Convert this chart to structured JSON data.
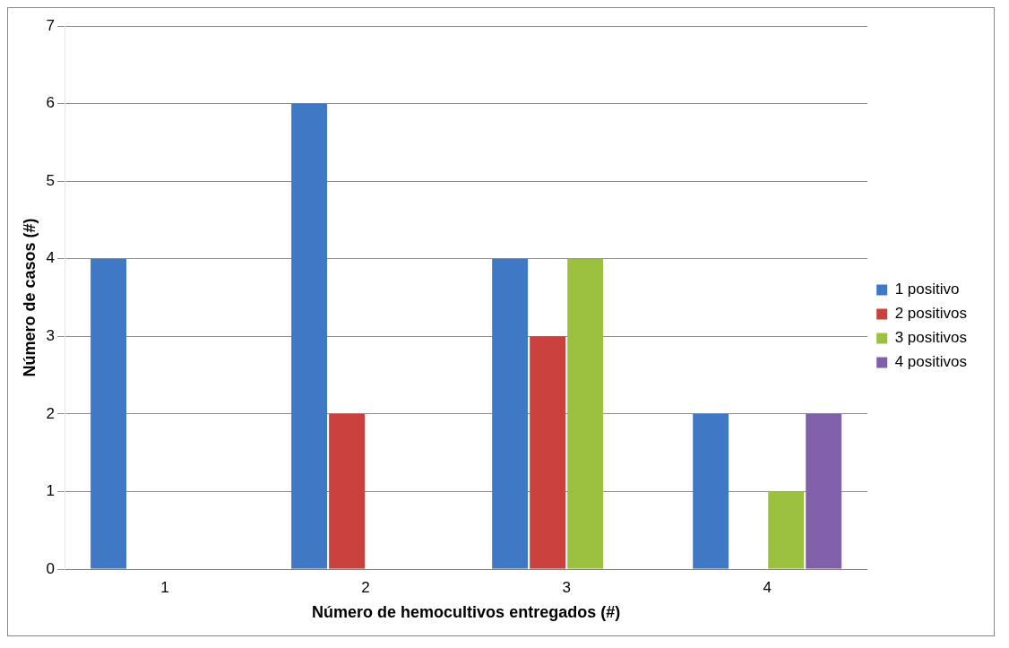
{
  "chart_data": {
    "type": "bar",
    "xlabel": "Número de hemocultivos entregados (#)",
    "ylabel": "Número de casos (#)",
    "categories": [
      "1",
      "2",
      "3",
      "4"
    ],
    "series": [
      {
        "name": "1 positivo",
        "color": "#3f78c4",
        "values": [
          4,
          6,
          4,
          2
        ]
      },
      {
        "name": "2 positivos",
        "color": "#c9403d",
        "values": [
          0,
          2,
          3,
          0
        ]
      },
      {
        "name": "3 positivos",
        "color": "#9bc13e",
        "values": [
          0,
          0,
          4,
          1
        ]
      },
      {
        "name": "4 positivos",
        "color": "#8060a8",
        "values": [
          0,
          0,
          0,
          2
        ]
      }
    ],
    "ylim": [
      0,
      7
    ],
    "yticks": [
      0,
      1,
      2,
      3,
      4,
      5,
      6,
      7
    ],
    "grid": "y",
    "legend": "right"
  }
}
